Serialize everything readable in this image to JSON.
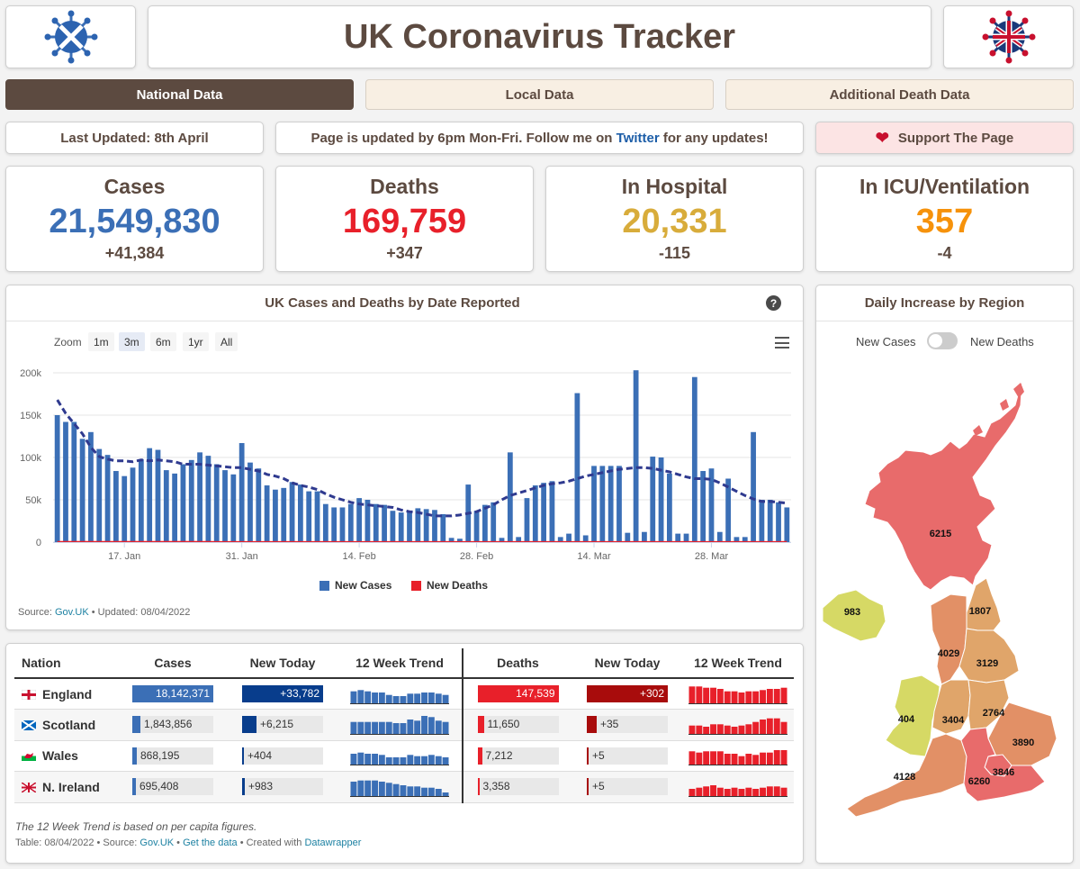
{
  "header": {
    "title": "UK Coronavirus Tracker"
  },
  "tabs": [
    {
      "label": "National Data",
      "active": true
    },
    {
      "label": "Local Data",
      "active": false
    },
    {
      "label": "Additional Death Data",
      "active": false
    }
  ],
  "info": {
    "last_updated": "Last Updated: 8th April",
    "notice_pre": "Page is updated by 6pm Mon-Fri. Follow me on",
    "notice_link": "Twitter",
    "notice_post": "for any updates!",
    "support": "Support The Page"
  },
  "stats": [
    {
      "label": "Cases",
      "value": "21,549,830",
      "change": "+41,384",
      "color": "#3b6fb6"
    },
    {
      "label": "Deaths",
      "value": "169,759",
      "change": "+347",
      "color": "#e8202a"
    },
    {
      "label": "In Hospital",
      "value": "20,331",
      "change": "-115",
      "color": "#d8ac3b"
    },
    {
      "label": "In ICU/Ventilation",
      "value": "357",
      "change": "-4",
      "color": "#f6920b"
    }
  ],
  "chart": {
    "title": "UK Cases and Deaths by Date Reported",
    "zoom_label": "Zoom",
    "zoom_buttons": [
      "1m",
      "3m",
      "6m",
      "1yr",
      "All"
    ],
    "zoom_active": "3m",
    "source_label": "Source:",
    "source_link": "Gov.UK",
    "updated": "• Updated: 08/04/2022"
  },
  "chart_data": {
    "type": "bar",
    "title": "UK Cases and Deaths by Date Reported",
    "ylim": [
      0,
      200000
    ],
    "y_ticks": [
      "0",
      "50k",
      "100k",
      "150k",
      "200k"
    ],
    "x_ticks": [
      "17. Jan",
      "31. Jan",
      "14. Feb",
      "28. Feb",
      "14. Mar",
      "28. Mar"
    ],
    "x_tick_index": [
      8,
      22,
      36,
      50,
      64,
      78
    ],
    "series": [
      {
        "name": "New Cases",
        "color": "#3b6fb6",
        "values": [
          150000,
          142000,
          142000,
          122000,
          130000,
          110000,
          103000,
          84000,
          78000,
          88000,
          98000,
          111000,
          109000,
          85000,
          81000,
          92000,
          97000,
          106000,
          102000,
          92000,
          85000,
          80000,
          117000,
          94000,
          87000,
          67000,
          62000,
          64000,
          71000,
          68000,
          60000,
          60000,
          45000,
          41000,
          41000,
          45000,
          52000,
          50000,
          45000,
          44000,
          37000,
          35000,
          36000,
          40000,
          39000,
          38000,
          33000,
          5000,
          4000,
          68000,
          37000,
          44000,
          47000,
          5000,
          106000,
          6000,
          52000,
          67000,
          70000,
          72000,
          6000,
          10000,
          176000,
          8000,
          90000,
          90000,
          90000,
          90000,
          11000,
          203000,
          12000,
          101000,
          100000,
          81000,
          10000,
          10000,
          195000,
          84000,
          87000,
          12000,
          75000,
          6000,
          6000,
          130000,
          50000,
          50000,
          47000,
          41000
        ]
      },
      {
        "name": "New Deaths",
        "color": "#e8202a",
        "values": [
          300,
          280,
          270,
          260,
          250,
          240,
          230,
          220,
          210,
          200,
          200,
          190,
          190,
          180,
          180,
          170,
          170,
          160,
          160,
          150,
          150,
          140,
          140,
          140,
          130,
          130,
          130,
          120,
          120,
          120,
          110,
          110,
          110,
          110,
          100,
          100,
          100,
          100,
          100,
          100,
          100,
          100,
          100,
          100,
          100,
          100,
          100,
          100,
          100,
          100,
          100,
          100,
          100,
          100,
          100,
          100,
          100,
          100,
          100,
          100,
          100,
          100,
          100,
          100,
          100,
          100,
          100,
          100,
          100,
          100,
          100,
          100,
          100,
          100,
          100,
          100,
          100,
          100,
          100,
          100,
          100,
          100,
          100,
          100,
          100,
          100,
          100,
          347
        ]
      },
      {
        "name": "7-day average",
        "color": "#2f3a8f",
        "values": [
          168000,
          152000,
          140000,
          128000,
          112000,
          101000,
          98000,
          96000,
          96000,
          95000,
          97000,
          96000,
          97000,
          96000,
          95000,
          92000,
          92000,
          92000,
          91000,
          90000,
          89000,
          88000,
          88000,
          86000,
          84000,
          80000,
          78000,
          75000,
          70000,
          67000,
          65000,
          62000,
          57000,
          53000,
          50000,
          47000,
          45000,
          44000,
          43000,
          42000,
          41000,
          38000,
          36000,
          35000,
          33000,
          31000,
          31000,
          31000,
          32000,
          34000,
          36000,
          40000,
          44000,
          50000,
          55000,
          58000,
          61000,
          64000,
          67000,
          69000,
          70000,
          72000,
          75000,
          78000,
          80000,
          82000,
          84000,
          86000,
          87000,
          88000,
          88000,
          87000,
          85000,
          83000,
          80000,
          77000,
          75000,
          75000,
          74000,
          70000,
          65000,
          60000,
          55000,
          51000,
          48000,
          48000,
          47000,
          46000
        ]
      }
    ],
    "legend": [
      "New Cases",
      "New Deaths"
    ]
  },
  "region_panel": {
    "title": "Daily Increase by Region",
    "toggle_left": "New Cases",
    "toggle_right": "New Deaths",
    "regions": [
      {
        "name": "Scotland",
        "value": "6215"
      },
      {
        "name": "N. Ireland",
        "value": "983"
      },
      {
        "name": "North East",
        "value": "1807"
      },
      {
        "name": "North West",
        "value": "4029"
      },
      {
        "name": "Yorkshire",
        "value": "3129"
      },
      {
        "name": "Wales",
        "value": "404"
      },
      {
        "name": "West Midlands",
        "value": "3404"
      },
      {
        "name": "East Midlands",
        "value": "2764"
      },
      {
        "name": "East of England",
        "value": "3890"
      },
      {
        "name": "London",
        "value": "3846"
      },
      {
        "name": "South West",
        "value": "4128"
      },
      {
        "name": "South East",
        "value": "6260"
      }
    ]
  },
  "table": {
    "headers": [
      "Nation",
      "Cases",
      "New Today",
      "12 Week Trend",
      "Deaths",
      "New Today",
      "12 Week Trend"
    ],
    "rows": [
      {
        "nation": "England",
        "cases": "18,142,371",
        "cases_frac": 1.0,
        "new_cases": "+33,782",
        "new_cases_frac": 1.0,
        "deaths": "147,539",
        "deaths_frac": 1.0,
        "new_deaths": "+302",
        "new_deaths_frac": 1.0,
        "case_trend": [
          10,
          11,
          10,
          9,
          9,
          7,
          6,
          6,
          8,
          8,
          9,
          9,
          8,
          7
        ],
        "death_trend": [
          14,
          14,
          13,
          13,
          12,
          10,
          10,
          9,
          10,
          10,
          11,
          12,
          12,
          13
        ]
      },
      {
        "nation": "Scotland",
        "cases": "1,843,856",
        "cases_frac": 0.1,
        "new_cases": "+6,215",
        "new_cases_frac": 0.18,
        "deaths": "11,650",
        "deaths_frac": 0.08,
        "new_deaths": "+35",
        "new_deaths_frac": 0.12,
        "case_trend": [
          10,
          10,
          10,
          10,
          10,
          10,
          9,
          9,
          12,
          11,
          15,
          14,
          11,
          10
        ],
        "death_trend": [
          7,
          7,
          6,
          8,
          8,
          7,
          6,
          7,
          8,
          10,
          12,
          13,
          13,
          10
        ]
      },
      {
        "nation": "Wales",
        "cases": "868,195",
        "cases_frac": 0.05,
        "new_cases": "+404",
        "new_cases_frac": 0.01,
        "deaths": "7,212",
        "deaths_frac": 0.05,
        "new_deaths": "+5",
        "new_deaths_frac": 0.02,
        "case_trend": [
          9,
          10,
          9,
          9,
          8,
          6,
          6,
          6,
          8,
          7,
          7,
          8,
          7,
          6
        ],
        "death_trend": [
          11,
          10,
          11,
          11,
          11,
          9,
          9,
          7,
          9,
          8,
          10,
          10,
          12,
          12
        ]
      },
      {
        "nation": "N. Ireland",
        "cases": "695,408",
        "cases_frac": 0.04,
        "new_cases": "+983",
        "new_cases_frac": 0.03,
        "deaths": "3,358",
        "deaths_frac": 0.02,
        "new_deaths": "+5",
        "new_deaths_frac": 0.02,
        "case_trend": [
          12,
          13,
          13,
          13,
          12,
          11,
          10,
          9,
          8,
          8,
          7,
          7,
          6,
          3
        ],
        "death_trend": [
          6,
          7,
          8,
          9,
          7,
          6,
          7,
          6,
          7,
          6,
          7,
          8,
          8,
          7
        ]
      }
    ],
    "note": "The 12 Week Trend is based on per capita figures.",
    "footer_pre": "Table: 08/04/2022 • Source:",
    "footer_src": "Gov.UK",
    "footer_get": "Get the data",
    "footer_created": "• Created with",
    "footer_dw": "Datawrapper"
  },
  "colors": {
    "brown": "#5c4a40",
    "tab_inactive": "#f8efe3",
    "support_bg": "#fce4e4",
    "case_bar": "#3b6fb6",
    "case_new": "#083d8c",
    "death_bar": "#e8202a",
    "death_new": "#a80c0c"
  }
}
